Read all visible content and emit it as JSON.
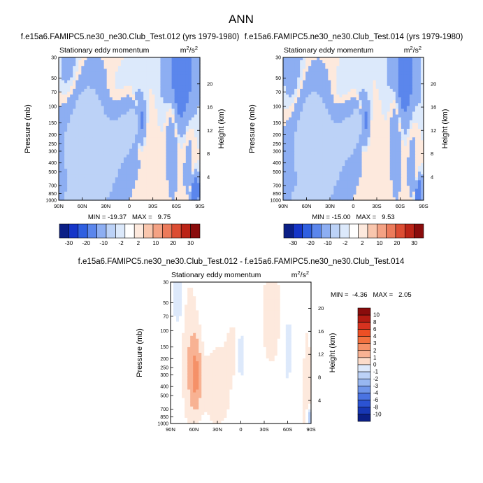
{
  "figure": {
    "title": "ANN"
  },
  "panels": [
    {
      "title": "f.e15a6.FAMIPC5.ne30_ne30.Club_Test.012 (yrs 1979-1980)",
      "left_label": "Stationary eddy momentum",
      "units": "m²/s²",
      "stats": "MIN = -19.37   MAX =   9.75"
    },
    {
      "title": "f.e15a6.FAMIPC5.ne30_ne30.Club_Test.014 (yrs 1979-1980)",
      "left_label": "Stationary eddy momentum",
      "units": "m²/s²",
      "stats": "MIN = -15.00   MAX =   9.53"
    },
    {
      "title": "f.e15a6.FAMIPC5.ne30_ne30.Club_Test.012 - f.e15a6.FAMIPC5.ne30_ne30.Club_Test.014",
      "left_label": "Stationary eddy momentum",
      "units": "m²/s²",
      "stats": "MIN =  -4.36   MAX =   2.05"
    }
  ],
  "colorbars": {
    "horizontal_labels": [
      "-30",
      "-20",
      "-10",
      "-2",
      "2",
      "10",
      "20",
      "30"
    ],
    "horizontal_colors": [
      "#0b1f86",
      "#1535c8",
      "#2f5fe0",
      "#5b86ec",
      "#8daef2",
      "#bcd2f7",
      "#dce9fb",
      "#ffffff",
      "#fde9dd",
      "#f9c6ad",
      "#f4a284",
      "#ec7b5b",
      "#dc4d33",
      "#bb2417",
      "#8a0c0c"
    ],
    "vertical_labels": [
      "10",
      "8",
      "6",
      "4",
      "3",
      "2",
      "1",
      "0",
      "-1",
      "-2",
      "-3",
      "-4",
      "-6",
      "-8",
      "-10"
    ],
    "vertical_colors": [
      "#8a0c0c",
      "#b31b12",
      "#d8321f",
      "#ed4f24",
      "#f2713f",
      "#f59168",
      "#f8b293",
      "#fcdcca",
      "#dde9fb",
      "#bcd2f7",
      "#98b7f1",
      "#6f95ea",
      "#4a73e2",
      "#2b53d3",
      "#1737b4",
      "#0b1f86"
    ]
  },
  "chart_data": [
    {
      "type": "heatmap",
      "title": "f.e15a6.FAMIPC5.ne30_ne30.Club_Test.012 (yrs 1979-1980)",
      "left_label": "Stationary eddy momentum",
      "units": "m²/s²",
      "xlabel": "",
      "ylabel": "Pressure (mb)",
      "y2label": "Height (km)",
      "x_ticks": [
        "90N",
        "60N",
        "30N",
        "0",
        "30S",
        "60S",
        "90S"
      ],
      "x_tick_values": [
        90,
        60,
        30,
        0,
        -30,
        -60,
        -90
      ],
      "y_ticks": [
        30,
        50,
        70,
        100,
        150,
        200,
        250,
        300,
        400,
        500,
        700,
        850,
        1000
      ],
      "y_log": true,
      "ylim": [
        1000,
        30
      ],
      "height_ticks_km": [
        4,
        8,
        12,
        16,
        20
      ],
      "contour_levels": [
        -30,
        -20,
        -10,
        -2,
        2,
        10,
        20,
        30
      ],
      "min": -19.37,
      "max": 9.75,
      "features": [
        {
          "lat": 20,
          "p": 130,
          "lat_width": 28,
          "p_width_decades": 0.38,
          "value": -3
        },
        {
          "lat": 4,
          "p": 165,
          "lat_width": 22,
          "p_width_decades": 0.32,
          "value": 4
        },
        {
          "lat": 54,
          "p": 230,
          "lat_width": 30,
          "p_width_decades": 0.55,
          "value": 6
        },
        {
          "lat": 35,
          "p": 300,
          "lat_width": 34,
          "p_width_decades": 0.65,
          "value": 2
        },
        {
          "lat": -12,
          "p": 150,
          "lat_width": 8,
          "p_width_decades": 0.25,
          "value": -5
        },
        {
          "lat": -7,
          "p": 150,
          "lat_width": 5,
          "p_width_decades": 0.16,
          "value": 7
        },
        {
          "lat": -65,
          "p": 45,
          "lat_width": 16,
          "p_width_decades": 0.5,
          "value": -6
        },
        {
          "lat": -55,
          "p": 100,
          "lat_width": 8,
          "p_width_decades": 0.8,
          "value": 2
        },
        {
          "lat": -75,
          "p": 90,
          "lat_width": 8,
          "p_width_decades": 1.2,
          "value": 1
        },
        {
          "lat": -83,
          "p": 800,
          "lat_width": 5,
          "p_width_decades": 0.15,
          "value": -8
        },
        {
          "lat": -80,
          "p": 700,
          "lat_width": 4,
          "p_width_decades": 0.12,
          "value": 3
        },
        {
          "lat": 75,
          "p": 75,
          "lat_width": 16,
          "p_width_decades": 0.6,
          "value": -1.5
        },
        {
          "lat": 65,
          "p": 950,
          "lat_width": 25,
          "p_width_decades": 0.12,
          "value": 2
        }
      ]
    },
    {
      "type": "heatmap",
      "title": "f.e15a6.FAMIPC5.ne30_ne30.Club_Test.014 (yrs 1979-1980)",
      "left_label": "Stationary eddy momentum",
      "units": "m²/s²",
      "xlabel": "",
      "ylabel": "Pressure (mb)",
      "y2label": "Height (km)",
      "x_ticks": [
        "90N",
        "60N",
        "30N",
        "0",
        "30S",
        "60S",
        "90S"
      ],
      "x_tick_values": [
        90,
        60,
        30,
        0,
        -30,
        -60,
        -90
      ],
      "y_ticks": [
        30,
        50,
        70,
        100,
        150,
        200,
        250,
        300,
        400,
        500,
        700,
        850,
        1000
      ],
      "y_log": true,
      "ylim": [
        1000,
        30
      ],
      "height_ticks_km": [
        4,
        8,
        12,
        16,
        20
      ],
      "contour_levels": [
        -30,
        -20,
        -10,
        -2,
        2,
        10,
        20,
        30
      ],
      "min": -15.0,
      "max": 9.53,
      "features": [
        {
          "lat": 18,
          "p": 130,
          "lat_width": 26,
          "p_width_decades": 0.38,
          "value": -3
        },
        {
          "lat": 4,
          "p": 165,
          "lat_width": 22,
          "p_width_decades": 0.32,
          "value": 4
        },
        {
          "lat": 52,
          "p": 230,
          "lat_width": 28,
          "p_width_decades": 0.55,
          "value": 5
        },
        {
          "lat": 33,
          "p": 300,
          "lat_width": 32,
          "p_width_decades": 0.6,
          "value": 2
        },
        {
          "lat": -12,
          "p": 150,
          "lat_width": 8,
          "p_width_decades": 0.25,
          "value": -5
        },
        {
          "lat": -7,
          "p": 150,
          "lat_width": 5,
          "p_width_decades": 0.16,
          "value": 7
        },
        {
          "lat": -65,
          "p": 45,
          "lat_width": 15,
          "p_width_decades": 0.5,
          "value": -5
        },
        {
          "lat": -55,
          "p": 100,
          "lat_width": 8,
          "p_width_decades": 0.8,
          "value": 2
        },
        {
          "lat": -75,
          "p": 90,
          "lat_width": 8,
          "p_width_decades": 1.2,
          "value": 1
        },
        {
          "lat": -83,
          "p": 800,
          "lat_width": 5,
          "p_width_decades": 0.15,
          "value": -6
        },
        {
          "lat": -80,
          "p": 700,
          "lat_width": 4,
          "p_width_decades": 0.12,
          "value": 3
        },
        {
          "lat": 75,
          "p": 75,
          "lat_width": 16,
          "p_width_decades": 0.6,
          "value": -1.5
        },
        {
          "lat": 65,
          "p": 950,
          "lat_width": 25,
          "p_width_decades": 0.12,
          "value": 2
        }
      ]
    },
    {
      "type": "heatmap",
      "title": "f.e15a6.FAMIPC5.ne30_ne30.Club_Test.012 - f.e15a6.FAMIPC5.ne30_ne30.Club_Test.014",
      "left_label": "Stationary eddy momentum",
      "units": "m²/s²",
      "xlabel": "",
      "ylabel": "Pressure (mb)",
      "y2label": "Height (km)",
      "x_ticks": [
        "90N",
        "60N",
        "30N",
        "0",
        "30S",
        "60S",
        "90S"
      ],
      "x_tick_values": [
        90,
        60,
        30,
        0,
        -30,
        -60,
        -90
      ],
      "y_ticks": [
        30,
        50,
        70,
        100,
        150,
        200,
        250,
        300,
        400,
        500,
        700,
        850,
        1000
      ],
      "y_log": true,
      "ylim": [
        1000,
        30
      ],
      "height_ticks_km": [
        4,
        8,
        12,
        16,
        20
      ],
      "contour_levels": [
        -10,
        -8,
        -6,
        -4,
        -3,
        -2,
        -1,
        0,
        1,
        2,
        3,
        4,
        6,
        8,
        10
      ],
      "min": -4.36,
      "max": 2.05,
      "features": [
        {
          "lat": 58,
          "p": 300,
          "lat_width": 7,
          "p_width_decades": 0.35,
          "value": 2
        },
        {
          "lat": 65,
          "p": 180,
          "lat_width": 12,
          "p_width_decades": 0.8,
          "value": 0.8
        },
        {
          "lat": 30,
          "p": 400,
          "lat_width": 20,
          "p_width_decades": 0.5,
          "value": 0.7
        },
        {
          "lat": 0,
          "p": 180,
          "lat_width": 4,
          "p_width_decades": 0.22,
          "value": -1.3
        },
        {
          "lat": 10,
          "p": 150,
          "lat_width": 8,
          "p_width_decades": 0.25,
          "value": 0.6
        },
        {
          "lat": 80,
          "p": 45,
          "lat_width": 6,
          "p_width_decades": 0.3,
          "value": -1
        },
        {
          "lat": -40,
          "p": 70,
          "lat_width": 15,
          "p_width_decades": 0.6,
          "value": 0.7
        },
        {
          "lat": -60,
          "p": 150,
          "lat_width": 8,
          "p_width_decades": 0.5,
          "value": -0.6
        },
        {
          "lat": -85,
          "p": 500,
          "lat_width": 6,
          "p_width_decades": 0.8,
          "value": 0.7
        },
        {
          "lat": -88,
          "p": 850,
          "lat_width": 3,
          "p_width_decades": 0.1,
          "value": -2
        }
      ]
    }
  ]
}
